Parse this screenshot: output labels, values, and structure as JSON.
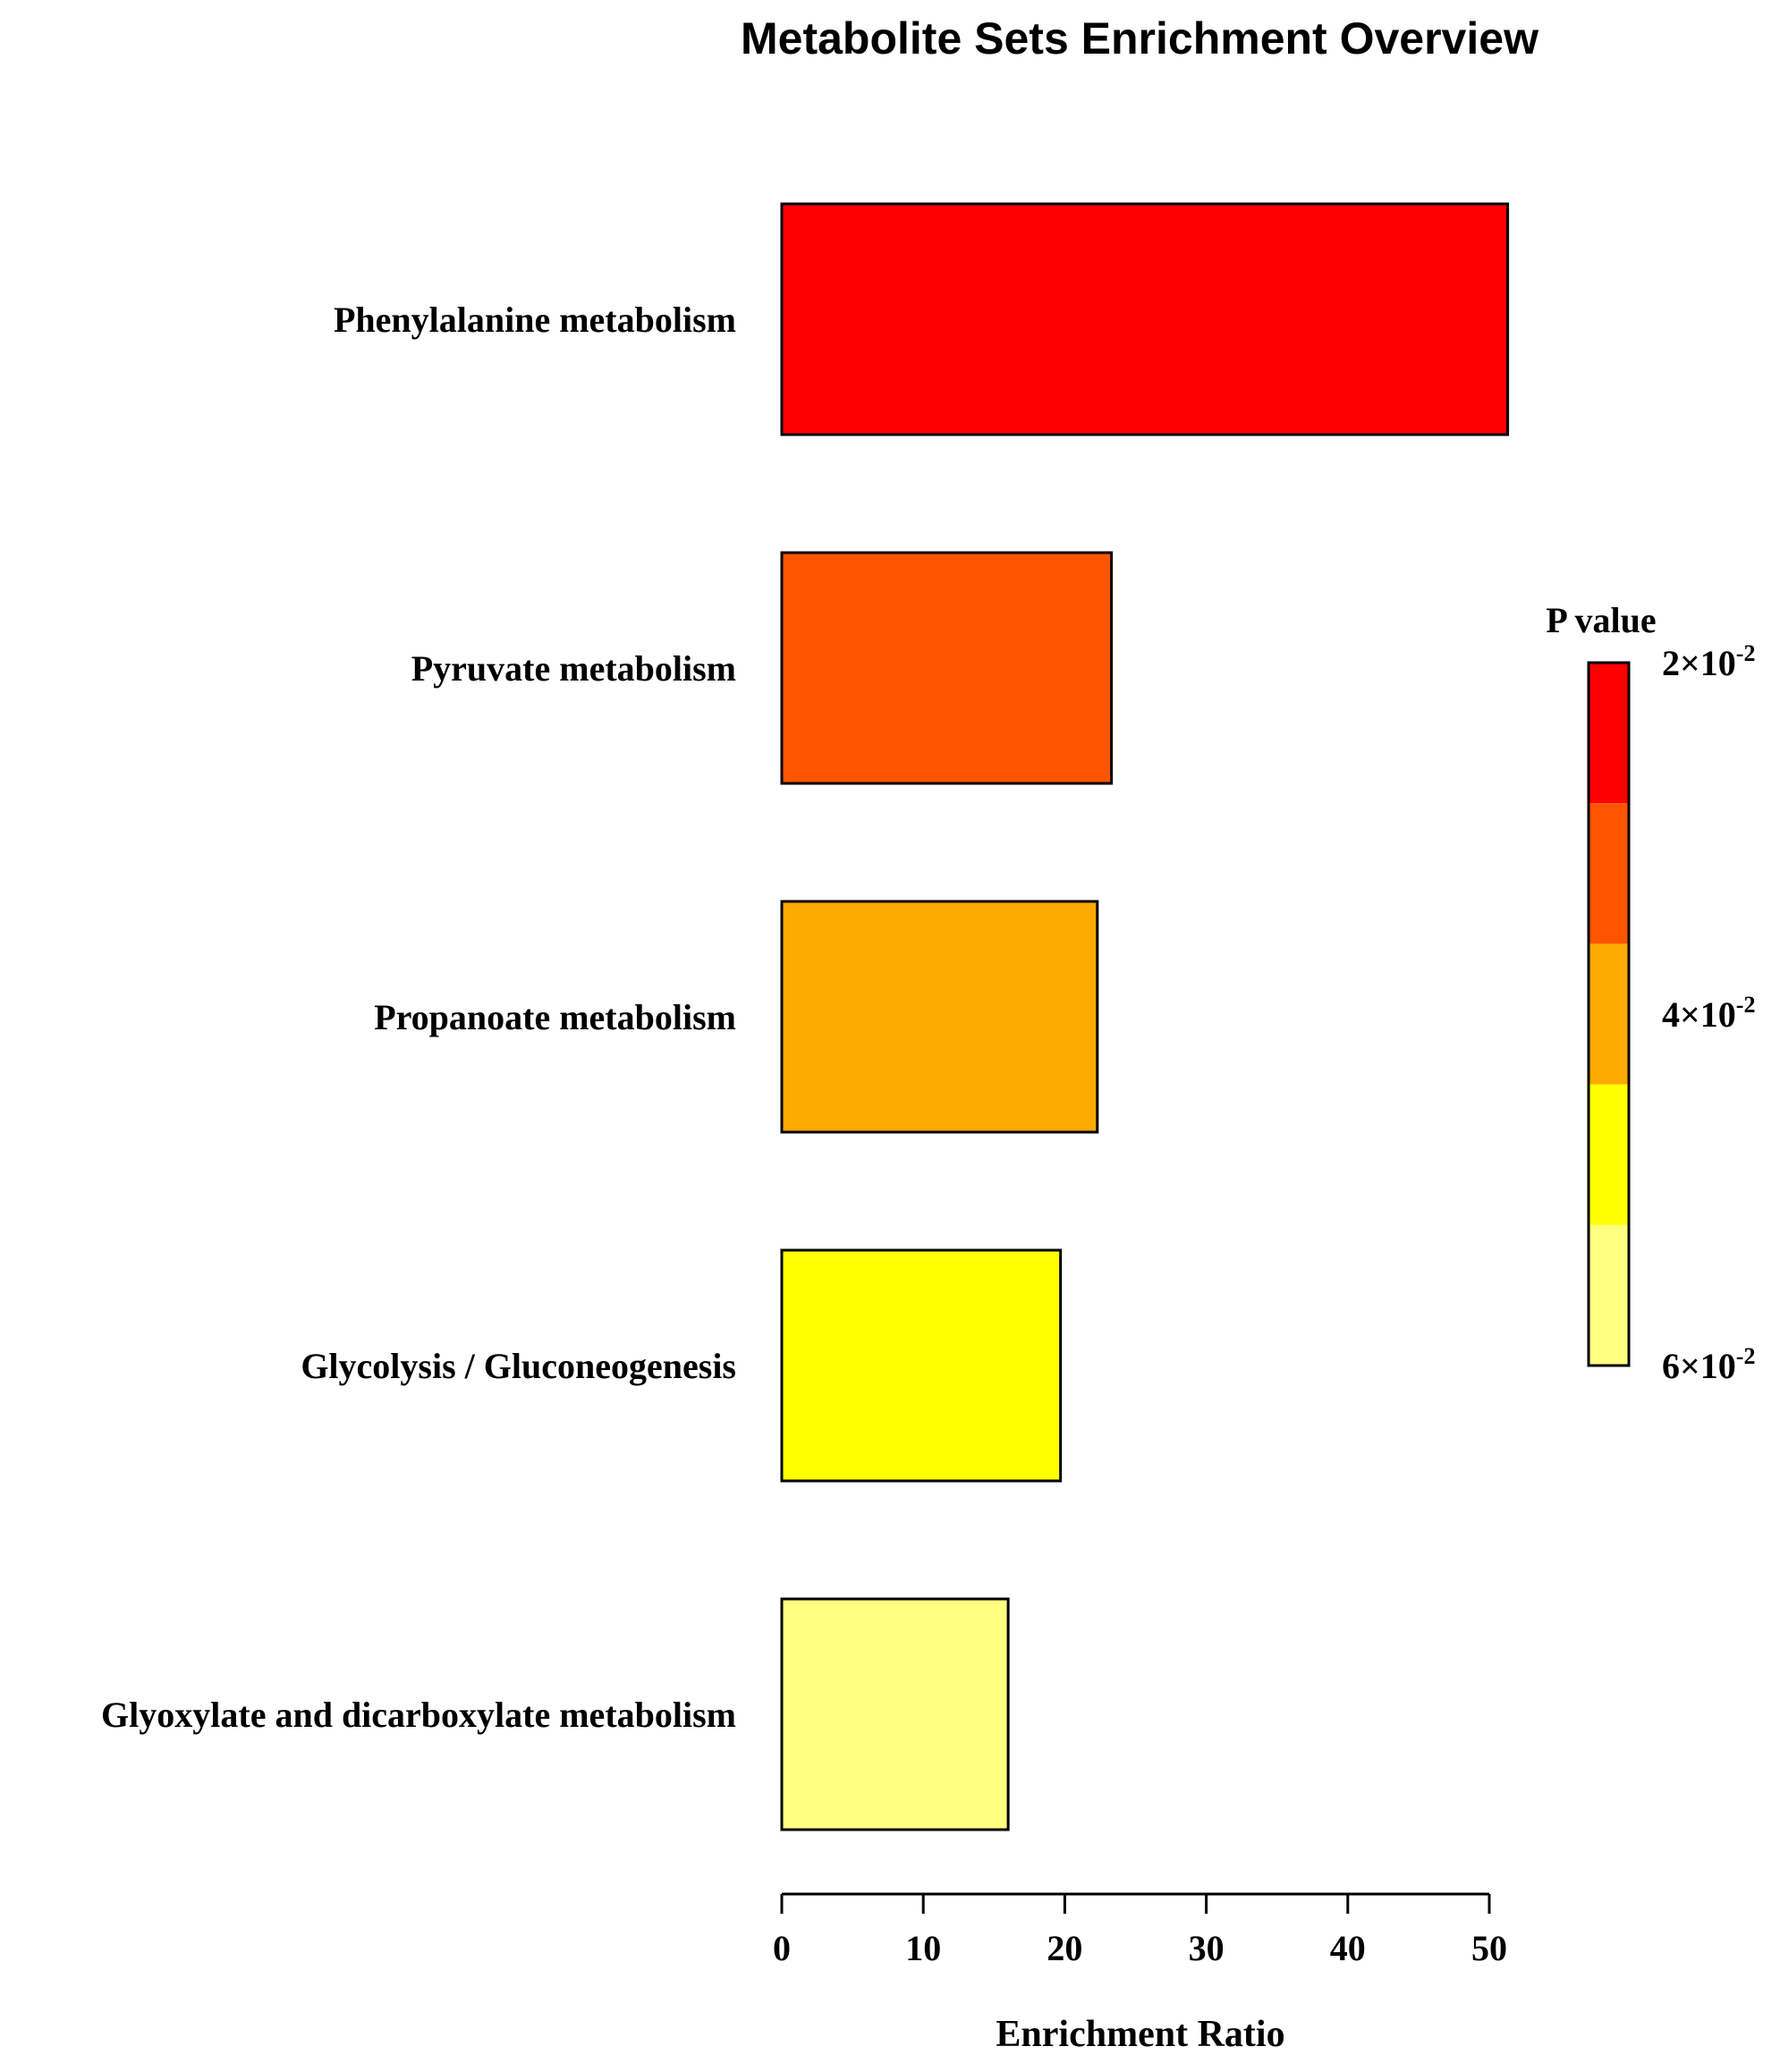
{
  "chart_data": {
    "type": "bar",
    "orientation": "horizontal",
    "title": "Metabolite Sets Enrichment Overview",
    "xlabel": "Enrichment Ratio",
    "ylabel": "",
    "xlim": [
      0,
      50
    ],
    "xticks": [
      "0",
      "10",
      "20",
      "30",
      "40",
      "50"
    ],
    "categories": [
      "Phenylalanine metabolism",
      "Pyruvate metabolism",
      "Propanoate metabolism",
      "Glycolysis / Gluconeogenesis",
      "Glyoxylate and dicarboxylate metabolism"
    ],
    "values": [
      51.3,
      23.3,
      22.3,
      19.7,
      16.0
    ],
    "bar_colors": [
      "#FF0000",
      "#FF5500",
      "#FFAA00",
      "#FFFF00",
      "#FFFF80"
    ],
    "grid": false,
    "legend": {
      "title": "P value",
      "placement": "right",
      "colors": [
        "#FF0000",
        "#FF5500",
        "#FFAA00",
        "#FFFF00",
        "#FFFF80"
      ],
      "labels": [
        {
          "base": "2×10",
          "exp": "-2"
        },
        {
          "base": "4×10",
          "exp": "-2"
        },
        {
          "base": "6×10",
          "exp": "-2"
        }
      ]
    }
  }
}
